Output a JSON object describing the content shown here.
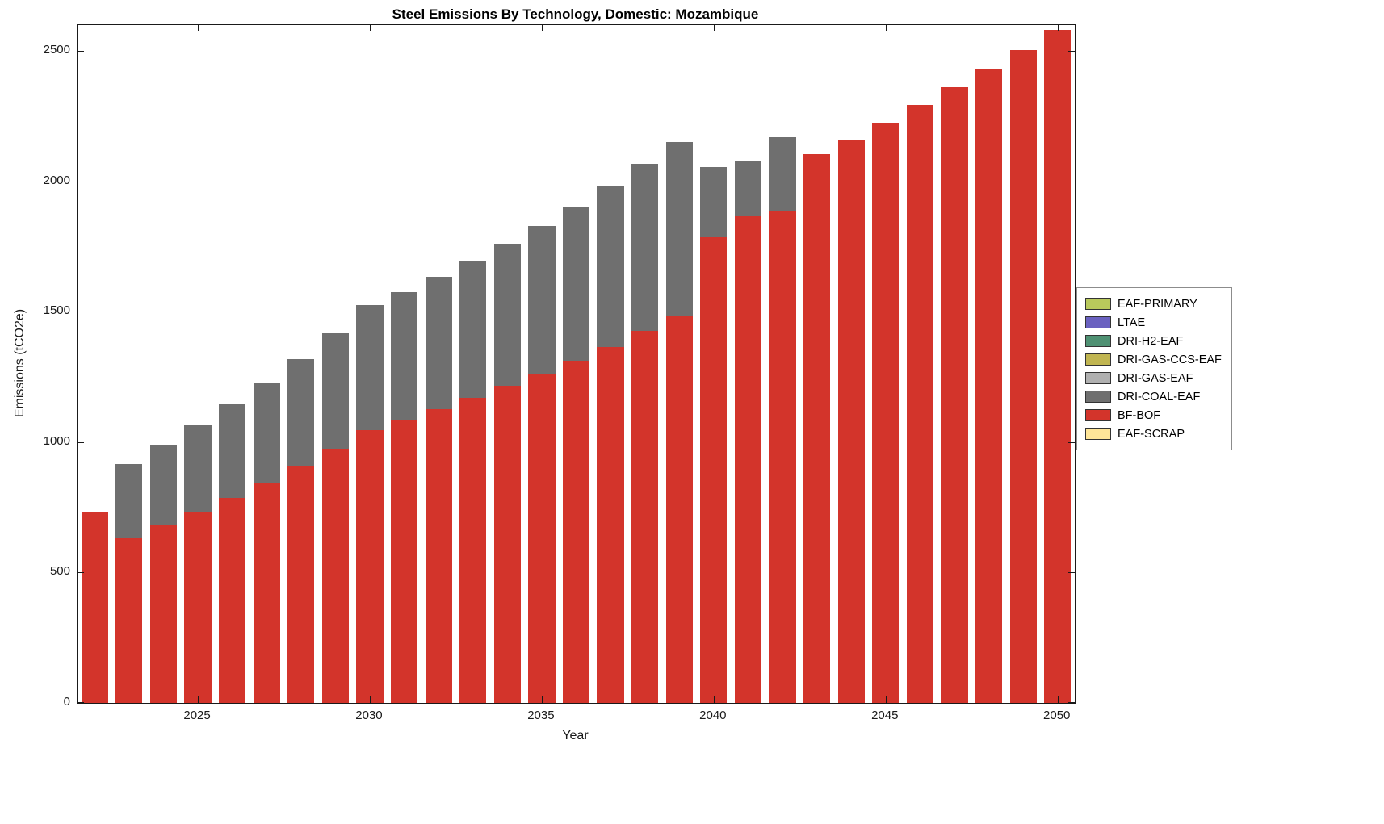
{
  "title": "Steel Emissions By Technology, Domestic: Mozambique",
  "xlabel": "Year",
  "ylabel": "Emissions (tCO2e)",
  "chart_data": {
    "type": "bar",
    "stacked": true,
    "title": "Steel Emissions By Technology, Domestic: Mozambique",
    "xlabel": "Year",
    "ylabel": "Emissions (tCO2e)",
    "ylim": [
      0,
      2600
    ],
    "yticks": [
      0,
      500,
      1000,
      1500,
      2000,
      2500
    ],
    "xticks": [
      2025,
      2030,
      2035,
      2040,
      2045,
      2050
    ],
    "grid": false,
    "legend_position": "right-outside",
    "categories": [
      2022,
      2023,
      2024,
      2025,
      2026,
      2027,
      2028,
      2029,
      2030,
      2031,
      2032,
      2033,
      2034,
      2035,
      2036,
      2037,
      2038,
      2039,
      2040,
      2041,
      2042,
      2043,
      2044,
      2045,
      2046,
      2047,
      2048,
      2049,
      2050
    ],
    "series": [
      {
        "name": "BF-BOF",
        "color": "#d3342b",
        "values": [
          730,
          630,
          680,
          732,
          787,
          845,
          906,
          976,
          1047,
          1086,
          1126,
          1170,
          1215,
          1262,
          1312,
          1366,
          1426,
          1487,
          1786,
          1866,
          1886,
          2106,
          2161,
          2226,
          2294,
          2361,
          2431,
          2504,
          2580
        ]
      },
      {
        "name": "DRI-COAL-EAF",
        "color": "#6f6f6f",
        "values": [
          0,
          285,
          310,
          333,
          358,
          385,
          414,
          444,
          478,
          489,
          507,
          525,
          545,
          568,
          593,
          619,
          641,
          664,
          269,
          215,
          284,
          0,
          0,
          0,
          0,
          0,
          0,
          0,
          0
        ]
      },
      {
        "name": "EAF-PRIMARY",
        "color": "#b9c95c",
        "values": [
          0,
          0,
          0,
          0,
          0,
          0,
          0,
          0,
          0,
          0,
          0,
          0,
          0,
          0,
          0,
          0,
          0,
          0,
          0,
          0,
          0,
          0,
          0,
          0,
          0,
          0,
          0,
          0,
          0
        ]
      },
      {
        "name": "LTAE",
        "color": "#6a61c0",
        "values": [
          0,
          0,
          0,
          0,
          0,
          0,
          0,
          0,
          0,
          0,
          0,
          0,
          0,
          0,
          0,
          0,
          0,
          0,
          0,
          0,
          0,
          0,
          0,
          0,
          0,
          0,
          0,
          0,
          0
        ]
      },
      {
        "name": "DRI-H2-EAF",
        "color": "#4f9173",
        "values": [
          0,
          0,
          0,
          0,
          0,
          0,
          0,
          0,
          0,
          0,
          0,
          0,
          0,
          0,
          0,
          0,
          0,
          0,
          0,
          0,
          0,
          0,
          0,
          0,
          0,
          0,
          0,
          0,
          0
        ]
      },
      {
        "name": "DRI-GAS-CCS-EAF",
        "color": "#c0b551",
        "values": [
          0,
          0,
          0,
          0,
          0,
          0,
          0,
          0,
          0,
          0,
          0,
          0,
          0,
          0,
          0,
          0,
          0,
          0,
          0,
          0,
          0,
          0,
          0,
          0,
          0,
          0,
          0,
          0,
          0
        ]
      },
      {
        "name": "DRI-GAS-EAF",
        "color": "#b0b0b0",
        "values": [
          0,
          0,
          0,
          0,
          0,
          0,
          0,
          0,
          0,
          0,
          0,
          0,
          0,
          0,
          0,
          0,
          0,
          0,
          0,
          0,
          0,
          0,
          0,
          0,
          0,
          0,
          0,
          0,
          0
        ]
      },
      {
        "name": "EAF-SCRAP",
        "color": "#ffe699",
        "values": [
          0,
          0,
          0,
          0,
          0,
          0,
          0,
          0,
          0,
          0,
          0,
          0,
          0,
          0,
          0,
          0,
          0,
          0,
          0,
          0,
          0,
          0,
          0,
          0,
          0,
          0,
          0,
          0,
          0
        ]
      }
    ],
    "legend": [
      {
        "label": "EAF-PRIMARY",
        "color": "#b9c95c"
      },
      {
        "label": "LTAE",
        "color": "#6a61c0"
      },
      {
        "label": "DRI-H2-EAF",
        "color": "#4f9173"
      },
      {
        "label": "DRI-GAS-CCS-EAF",
        "color": "#c0b551"
      },
      {
        "label": "DRI-GAS-EAF",
        "color": "#b0b0b0"
      },
      {
        "label": "DRI-COAL-EAF",
        "color": "#6f6f6f"
      },
      {
        "label": "BF-BOF",
        "color": "#d3342b"
      },
      {
        "label": "EAF-SCRAP",
        "color": "#ffe699"
      }
    ]
  }
}
